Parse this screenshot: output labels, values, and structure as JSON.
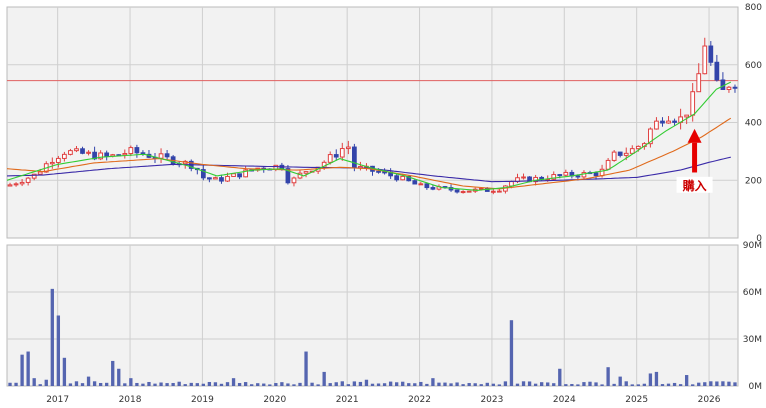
{
  "chart_data": [
    {
      "type": "candlestick",
      "title": "",
      "x_tick_labels": [
        "2017",
        "2018",
        "2019",
        "2020",
        "2021",
        "2022",
        "2023",
        "2024",
        "2025",
        "2026"
      ],
      "ylim": [
        0,
        800
      ],
      "y_ticks": [
        "0",
        "200",
        "400",
        "600",
        "800"
      ],
      "y_axis_side": "right",
      "grid": true,
      "reference_line": {
        "value": 545,
        "color": "#e06060"
      },
      "moving_average_colors": {
        "short": "#33cc33",
        "medium": "#e06a1c",
        "long": "#3a2aa8"
      },
      "annotation": {
        "text": "購入",
        "date": "2025.8",
        "arrow_color": "#e60000"
      },
      "price_keypoints": [
        [
          2016.3,
          180
        ],
        [
          2016.7,
          220
        ],
        [
          2016.9,
          270
        ],
        [
          2017.1,
          300
        ],
        [
          2017.4,
          290
        ],
        [
          2017.7,
          280
        ],
        [
          2018.0,
          300
        ],
        [
          2018.3,
          285
        ],
        [
          2018.6,
          270
        ],
        [
          2018.9,
          250
        ],
        [
          2019.0,
          210
        ],
        [
          2019.2,
          200
        ],
        [
          2019.5,
          220
        ],
        [
          2019.8,
          245
        ],
        [
          2020.1,
          250
        ],
        [
          2020.2,
          190
        ],
        [
          2020.4,
          230
        ],
        [
          2020.6,
          250
        ],
        [
          2020.9,
          300
        ],
        [
          2021.0,
          330
        ],
        [
          2021.1,
          245
        ],
        [
          2021.4,
          230
        ],
        [
          2021.7,
          210
        ],
        [
          2022.0,
          180
        ],
        [
          2022.3,
          170
        ],
        [
          2022.6,
          165
        ],
        [
          2022.9,
          165
        ],
        [
          2023.1,
          170
        ],
        [
          2023.3,
          200
        ],
        [
          2023.6,
          205
        ],
        [
          2023.9,
          215
        ],
        [
          2024.2,
          220
        ],
        [
          2024.5,
          225
        ],
        [
          2024.7,
          290
        ],
        [
          2024.9,
          300
        ],
        [
          2025.1,
          330
        ],
        [
          2025.2,
          380
        ],
        [
          2025.4,
          430
        ],
        [
          2025.6,
          410
        ],
        [
          2025.75,
          460
        ],
        [
          2025.85,
          555
        ],
        [
          2025.95,
          690
        ],
        [
          2026.05,
          570
        ],
        [
          2026.15,
          490
        ],
        [
          2026.3,
          545
        ]
      ],
      "ma_short_keypoints": [
        [
          2016.3,
          200
        ],
        [
          2017.0,
          255
        ],
        [
          2017.6,
          280
        ],
        [
          2018.2,
          290
        ],
        [
          2018.8,
          250
        ],
        [
          2019.2,
          215
        ],
        [
          2019.7,
          235
        ],
        [
          2020.1,
          240
        ],
        [
          2020.4,
          215
        ],
        [
          2020.9,
          275
        ],
        [
          2021.3,
          245
        ],
        [
          2021.8,
          215
        ],
        [
          2022.3,
          175
        ],
        [
          2022.8,
          165
        ],
        [
          2023.2,
          175
        ],
        [
          2023.6,
          200
        ],
        [
          2024.1,
          215
        ],
        [
          2024.6,
          235
        ],
        [
          2025.0,
          300
        ],
        [
          2025.4,
          370
        ],
        [
          2025.8,
          430
        ],
        [
          2026.1,
          515
        ],
        [
          2026.3,
          540
        ]
      ],
      "ma_medium_keypoints": [
        [
          2016.3,
          240
        ],
        [
          2016.8,
          230
        ],
        [
          2017.5,
          260
        ],
        [
          2018.4,
          275
        ],
        [
          2019.0,
          255
        ],
        [
          2019.6,
          240
        ],
        [
          2020.3,
          235
        ],
        [
          2020.9,
          245
        ],
        [
          2021.3,
          240
        ],
        [
          2021.9,
          215
        ],
        [
          2022.6,
          180
        ],
        [
          2023.1,
          170
        ],
        [
          2023.6,
          185
        ],
        [
          2024.3,
          205
        ],
        [
          2024.9,
          235
        ],
        [
          2025.5,
          300
        ],
        [
          2025.9,
          350
        ],
        [
          2026.3,
          415
        ]
      ],
      "ma_long_keypoints": [
        [
          2016.3,
          215
        ],
        [
          2016.8,
          218
        ],
        [
          2017.7,
          240
        ],
        [
          2018.6,
          255
        ],
        [
          2019.5,
          250
        ],
        [
          2020.4,
          245
        ],
        [
          2021.3,
          242
        ],
        [
          2022.2,
          215
        ],
        [
          2023.0,
          195
        ],
        [
          2023.7,
          198
        ],
        [
          2024.5,
          205
        ],
        [
          2025.0,
          210
        ],
        [
          2025.6,
          235
        ],
        [
          2026.0,
          262
        ],
        [
          2026.3,
          280
        ]
      ]
    },
    {
      "type": "bar",
      "series_label": "volume",
      "ylim": [
        0,
        90
      ],
      "y_unit": "M",
      "y_ticks": [
        "0M",
        "30M",
        "60M",
        "90M"
      ],
      "y_axis_side": "right",
      "bar_color": "#5565b0",
      "volume_spikes": [
        [
          2016.5,
          20
        ],
        [
          2016.6,
          22
        ],
        [
          2016.7,
          5
        ],
        [
          2016.85,
          4
        ],
        [
          2016.9,
          62
        ],
        [
          2016.98,
          45
        ],
        [
          2017.1,
          18
        ],
        [
          2017.3,
          3
        ],
        [
          2017.42,
          6
        ],
        [
          2017.52,
          3
        ],
        [
          2017.75,
          16
        ],
        [
          2017.88,
          11
        ],
        [
          2018.0,
          5
        ],
        [
          2019.45,
          5
        ],
        [
          2020.45,
          22
        ],
        [
          2020.7,
          9
        ],
        [
          2020.95,
          3
        ],
        [
          2021.3,
          4
        ],
        [
          2022.2,
          5
        ],
        [
          2023.25,
          42
        ],
        [
          2023.45,
          3
        ],
        [
          2023.9,
          11
        ],
        [
          2024.6,
          12
        ],
        [
          2024.75,
          6
        ],
        [
          2025.2,
          8
        ],
        [
          2025.3,
          9
        ],
        [
          2025.7,
          7
        ],
        [
          2026.0,
          3
        ],
        [
          2026.2,
          3
        ]
      ]
    }
  ]
}
